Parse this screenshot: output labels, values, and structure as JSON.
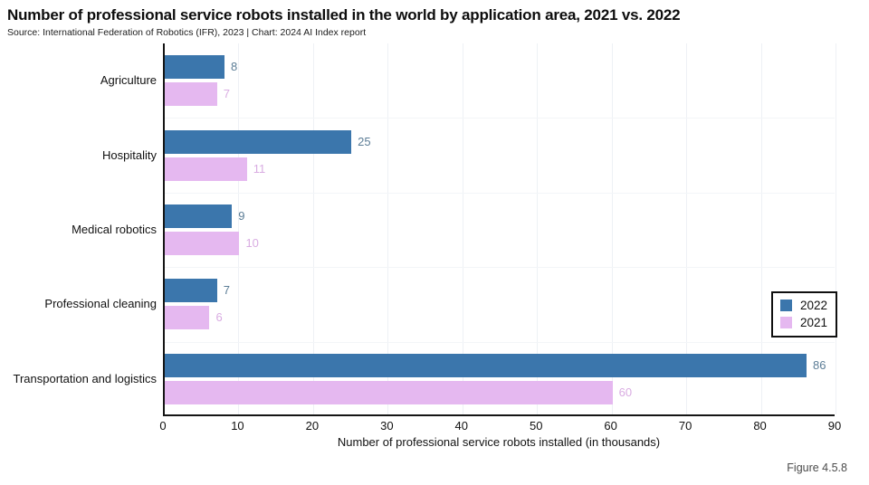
{
  "page": {
    "title": "Number of professional service robots installed in the world by application area, 2021 vs. 2022",
    "source": "Source: International Federation of Robotics (IFR), 2023 | Chart: 2024 AI Index report",
    "figure_label": "Figure 4.5.8"
  },
  "colors": {
    "bar_2022": "#3B76AC",
    "bar_2021": "#E5B8F0",
    "value_label_2022": "#5C7D96",
    "value_label_2021": "#D9ACE2",
    "axis": "#151515",
    "grid": "#EEF1F5",
    "text": "#111111",
    "figure_label": "#4B4B4B"
  },
  "chart_data": {
    "type": "bar",
    "orientation": "horizontal",
    "title": "Number of professional service robots installed in the world by application area, 2021 vs. 2022",
    "categories": [
      "Agriculture",
      "Hospitality",
      "Medical robotics",
      "Professional cleaning",
      "Transportation and logistics"
    ],
    "series": [
      {
        "name": "2022",
        "color": "#3B76AC",
        "label_color": "#5C7D96",
        "values": [
          8,
          25,
          9,
          7,
          86
        ]
      },
      {
        "name": "2021",
        "color": "#E5B8F0",
        "label_color": "#D9ACE2",
        "values": [
          7,
          11,
          10,
          6,
          60
        ]
      }
    ],
    "xlabel": "Number of professional service robots installed (in thousands)",
    "ylabel": "",
    "xlim": [
      0,
      90
    ],
    "xticks": [
      0,
      10,
      20,
      30,
      40,
      50,
      60,
      70,
      80,
      90
    ],
    "grid": true,
    "legend_position": "right"
  }
}
